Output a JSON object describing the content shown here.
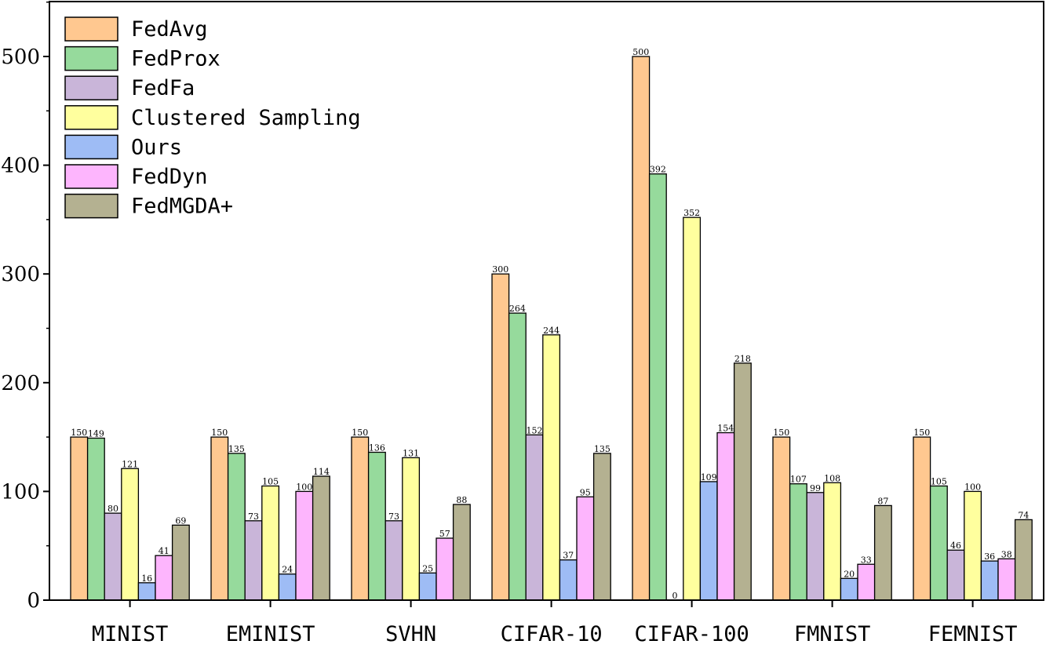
{
  "chart_data": {
    "type": "bar",
    "title": "",
    "xlabel": "",
    "ylabel": "",
    "ylim": [
      0,
      550
    ],
    "yticks": [
      0,
      100,
      200,
      300,
      400,
      500
    ],
    "grid": false,
    "legend_position": "top-left",
    "categories": [
      "MINIST",
      "EMINIST",
      "SVHN",
      "CIFAR-10",
      "CIFAR-100",
      "FMNIST",
      "FEMNIST"
    ],
    "series": [
      {
        "name": "FedAvg",
        "color": "#FFC890",
        "values": [
          150,
          150,
          150,
          300,
          500,
          150,
          150
        ]
      },
      {
        "name": "FedProx",
        "color": "#96DA9C",
        "values": [
          149,
          135,
          136,
          264,
          392,
          107,
          105
        ]
      },
      {
        "name": "FedFa",
        "color": "#C9B5D9",
        "values": [
          80,
          73,
          73,
          152,
          0,
          99,
          46
        ]
      },
      {
        "name": "Clustered Sampling",
        "color": "#FFFF9E",
        "values": [
          121,
          105,
          131,
          244,
          352,
          108,
          100
        ]
      },
      {
        "name": "Ours",
        "color": "#9EBCF5",
        "values": [
          16,
          24,
          25,
          37,
          109,
          20,
          36
        ]
      },
      {
        "name": "FedDyn",
        "color": "#FDB5FD",
        "values": [
          41,
          100,
          57,
          95,
          154,
          33,
          38
        ]
      },
      {
        "name": "FedMGDA+",
        "color": "#B4B191",
        "values": [
          69,
          114,
          88,
          135,
          218,
          87,
          74
        ]
      }
    ]
  }
}
